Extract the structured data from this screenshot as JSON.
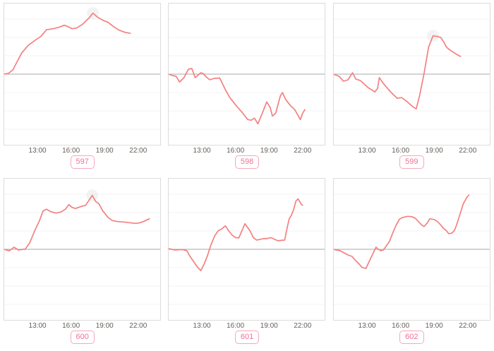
{
  "axis": {
    "tick_labels": [
      "13:00",
      "16:00",
      "19:00",
      "22:00"
    ],
    "tick_hours": [
      13,
      16,
      19,
      22
    ],
    "xlim": [
      10,
      24
    ],
    "ylim": [
      -1,
      1
    ],
    "grid": "faint horizontal lines, darker zero line at 0"
  },
  "style": {
    "line_color": "#f48080",
    "zero_line_color": "#a8a8a8",
    "grid_color": "#f3f3f3",
    "box_border_color": "#dcdcdc",
    "tick_label_color": "#63605a",
    "badge_border_color": "#f6a7c0",
    "badge_text_color": "#ef7295",
    "peak_halo_color": "#ebebeb"
  },
  "chart_data": [
    {
      "type": "line",
      "label": "597",
      "x_unit": "time of day (hours)",
      "y_unit": "normalized: 0 = zero line, +1 = top border, -1 = bottom border",
      "peak_marker": [
        17.95,
        0.86
      ],
      "points": [
        [
          10.0,
          0.0
        ],
        [
          10.4,
          0.01
        ],
        [
          10.8,
          0.06
        ],
        [
          11.2,
          0.18
        ],
        [
          11.6,
          0.3
        ],
        [
          12.2,
          0.41
        ],
        [
          12.9,
          0.49
        ],
        [
          13.3,
          0.53
        ],
        [
          13.8,
          0.625
        ],
        [
          14.4,
          0.64
        ],
        [
          15.0,
          0.665
        ],
        [
          15.4,
          0.69
        ],
        [
          15.8,
          0.665
        ],
        [
          16.1,
          0.64
        ],
        [
          16.5,
          0.65
        ],
        [
          17.0,
          0.7
        ],
        [
          17.6,
          0.79
        ],
        [
          17.95,
          0.86
        ],
        [
          18.4,
          0.8
        ],
        [
          18.9,
          0.755
        ],
        [
          19.3,
          0.73
        ],
        [
          19.8,
          0.67
        ],
        [
          20.3,
          0.62
        ],
        [
          20.8,
          0.59
        ],
        [
          21.3,
          0.575
        ]
      ]
    },
    {
      "type": "line",
      "label": "598",
      "x_unit": "time of day (hours)",
      "y_unit": "normalized: 0 = zero line, +1 = top border, -1 = bottom border",
      "peak_marker": null,
      "points": [
        [
          10.0,
          0.0
        ],
        [
          10.4,
          -0.02
        ],
        [
          10.7,
          -0.03
        ],
        [
          11.0,
          -0.11
        ],
        [
          11.4,
          -0.05
        ],
        [
          11.8,
          0.07
        ],
        [
          12.1,
          0.08
        ],
        [
          12.4,
          -0.05
        ],
        [
          12.9,
          0.02
        ],
        [
          13.1,
          0.01
        ],
        [
          13.4,
          -0.04
        ],
        [
          13.7,
          -0.08
        ],
        [
          14.1,
          -0.06
        ],
        [
          14.6,
          -0.055
        ],
        [
          15.1,
          -0.22
        ],
        [
          15.5,
          -0.33
        ],
        [
          16.0,
          -0.43
        ],
        [
          16.6,
          -0.54
        ],
        [
          17.1,
          -0.64
        ],
        [
          17.4,
          -0.65
        ],
        [
          17.7,
          -0.62
        ],
        [
          18.0,
          -0.7
        ],
        [
          18.4,
          -0.55
        ],
        [
          18.8,
          -0.39
        ],
        [
          19.1,
          -0.47
        ],
        [
          19.3,
          -0.59
        ],
        [
          19.6,
          -0.55
        ],
        [
          20.0,
          -0.31
        ],
        [
          20.2,
          -0.26
        ],
        [
          20.5,
          -0.36
        ],
        [
          20.9,
          -0.44
        ],
        [
          21.3,
          -0.5
        ],
        [
          21.8,
          -0.64
        ],
        [
          22.0,
          -0.55
        ],
        [
          22.2,
          -0.5
        ]
      ]
    },
    {
      "type": "line",
      "label": "599",
      "x_unit": "time of day (hours)",
      "y_unit": "normalized: 0 = zero line, +1 = top border, -1 = bottom border",
      "peak_marker": [
        18.9,
        0.54
      ],
      "points": [
        [
          10.0,
          0.0
        ],
        [
          10.5,
          -0.03
        ],
        [
          10.9,
          -0.1
        ],
        [
          11.3,
          -0.08
        ],
        [
          11.7,
          0.02
        ],
        [
          12.0,
          -0.07
        ],
        [
          12.4,
          -0.09
        ],
        [
          13.1,
          -0.19
        ],
        [
          13.7,
          -0.25
        ],
        [
          13.95,
          -0.2
        ],
        [
          14.1,
          -0.05
        ],
        [
          14.5,
          -0.14
        ],
        [
          15.1,
          -0.25
        ],
        [
          15.7,
          -0.34
        ],
        [
          16.1,
          -0.33
        ],
        [
          16.6,
          -0.39
        ],
        [
          17.1,
          -0.46
        ],
        [
          17.4,
          -0.49
        ],
        [
          17.7,
          -0.3
        ],
        [
          18.1,
          0.01
        ],
        [
          18.5,
          0.38
        ],
        [
          18.9,
          0.54
        ],
        [
          19.3,
          0.53
        ],
        [
          19.6,
          0.515
        ],
        [
          19.9,
          0.44
        ],
        [
          20.1,
          0.38
        ],
        [
          20.4,
          0.34
        ],
        [
          20.7,
          0.31
        ],
        [
          21.0,
          0.28
        ],
        [
          21.35,
          0.25
        ]
      ]
    },
    {
      "type": "line",
      "label": "600",
      "x_unit": "time of day (hours)",
      "y_unit": "normalized: 0 = zero line, +1 = top border, -1 = bottom border",
      "peak_marker": [
        17.9,
        0.76
      ],
      "points": [
        [
          10.0,
          0.0
        ],
        [
          10.5,
          -0.02
        ],
        [
          10.9,
          0.03
        ],
        [
          11.3,
          -0.01
        ],
        [
          11.7,
          0.0
        ],
        [
          11.9,
          0.0
        ],
        [
          12.3,
          0.09
        ],
        [
          12.7,
          0.24
        ],
        [
          12.9,
          0.31
        ],
        [
          13.2,
          0.41
        ],
        [
          13.5,
          0.54
        ],
        [
          13.8,
          0.565
        ],
        [
          14.2,
          0.53
        ],
        [
          14.65,
          0.51
        ],
        [
          15.1,
          0.525
        ],
        [
          15.5,
          0.565
        ],
        [
          15.8,
          0.63
        ],
        [
          16.1,
          0.59
        ],
        [
          16.4,
          0.575
        ],
        [
          16.85,
          0.6
        ],
        [
          17.3,
          0.62
        ],
        [
          17.6,
          0.69
        ],
        [
          17.9,
          0.76
        ],
        [
          18.2,
          0.675
        ],
        [
          18.5,
          0.64
        ],
        [
          18.8,
          0.55
        ],
        [
          19.3,
          0.45
        ],
        [
          19.7,
          0.405
        ],
        [
          20.2,
          0.39
        ],
        [
          20.7,
          0.385
        ],
        [
          21.2,
          0.375
        ],
        [
          21.8,
          0.365
        ],
        [
          22.2,
          0.375
        ],
        [
          22.6,
          0.4
        ],
        [
          23.0,
          0.43
        ]
      ]
    },
    {
      "type": "line",
      "label": "601",
      "x_unit": "time of day (hours)",
      "y_unit": "normalized: 0 = zero line, +1 = top border, -1 = bottom border",
      "peak_marker": null,
      "points": [
        [
          10.0,
          0.01
        ],
        [
          10.6,
          -0.01
        ],
        [
          11.0,
          -0.005
        ],
        [
          11.3,
          -0.005
        ],
        [
          11.65,
          -0.02
        ],
        [
          11.9,
          -0.09
        ],
        [
          12.25,
          -0.17
        ],
        [
          12.55,
          -0.24
        ],
        [
          12.9,
          -0.3
        ],
        [
          13.2,
          -0.21
        ],
        [
          13.5,
          -0.09
        ],
        [
          13.8,
          0.06
        ],
        [
          14.15,
          0.19
        ],
        [
          14.45,
          0.26
        ],
        [
          14.75,
          0.285
        ],
        [
          15.1,
          0.33
        ],
        [
          15.4,
          0.26
        ],
        [
          15.7,
          0.2
        ],
        [
          16.0,
          0.165
        ],
        [
          16.3,
          0.16
        ],
        [
          16.85,
          0.36
        ],
        [
          17.3,
          0.26
        ],
        [
          17.6,
          0.165
        ],
        [
          17.9,
          0.13
        ],
        [
          18.2,
          0.14
        ],
        [
          18.5,
          0.15
        ],
        [
          18.8,
          0.15
        ],
        [
          19.15,
          0.165
        ],
        [
          19.5,
          0.14
        ],
        [
          19.8,
          0.12
        ],
        [
          20.1,
          0.125
        ],
        [
          20.4,
          0.13
        ],
        [
          20.6,
          0.29
        ],
        [
          20.8,
          0.43
        ],
        [
          21.0,
          0.48
        ],
        [
          21.2,
          0.56
        ],
        [
          21.4,
          0.68
        ],
        [
          21.6,
          0.71
        ],
        [
          21.9,
          0.63
        ],
        [
          22.0,
          0.62
        ]
      ]
    },
    {
      "type": "line",
      "label": "602",
      "x_unit": "time of day (hours)",
      "y_unit": "normalized: 0 = zero line, +1 = top border, -1 = bottom border",
      "peak_marker": null,
      "points": [
        [
          10.0,
          0.0
        ],
        [
          10.6,
          -0.02
        ],
        [
          11.0,
          -0.055
        ],
        [
          11.3,
          -0.08
        ],
        [
          11.65,
          -0.1
        ],
        [
          11.9,
          -0.145
        ],
        [
          12.25,
          -0.2
        ],
        [
          12.55,
          -0.255
        ],
        [
          12.9,
          -0.27
        ],
        [
          13.2,
          -0.17
        ],
        [
          13.5,
          -0.07
        ],
        [
          13.8,
          0.03
        ],
        [
          14.0,
          0.0
        ],
        [
          14.25,
          -0.02
        ],
        [
          14.45,
          -0.01
        ],
        [
          14.65,
          0.03
        ],
        [
          15.0,
          0.11
        ],
        [
          15.3,
          0.23
        ],
        [
          15.6,
          0.34
        ],
        [
          15.9,
          0.425
        ],
        [
          16.2,
          0.45
        ],
        [
          16.65,
          0.465
        ],
        [
          17.0,
          0.46
        ],
        [
          17.3,
          0.44
        ],
        [
          17.6,
          0.39
        ],
        [
          17.9,
          0.34
        ],
        [
          18.1,
          0.32
        ],
        [
          18.4,
          0.375
        ],
        [
          18.6,
          0.43
        ],
        [
          19.0,
          0.42
        ],
        [
          19.3,
          0.39
        ],
        [
          19.6,
          0.34
        ],
        [
          19.8,
          0.3
        ],
        [
          20.1,
          0.26
        ],
        [
          20.3,
          0.22
        ],
        [
          20.6,
          0.23
        ],
        [
          20.8,
          0.265
        ],
        [
          21.0,
          0.34
        ],
        [
          21.2,
          0.44
        ],
        [
          21.4,
          0.54
        ],
        [
          21.6,
          0.64
        ],
        [
          21.9,
          0.725
        ],
        [
          22.1,
          0.765
        ]
      ]
    }
  ]
}
